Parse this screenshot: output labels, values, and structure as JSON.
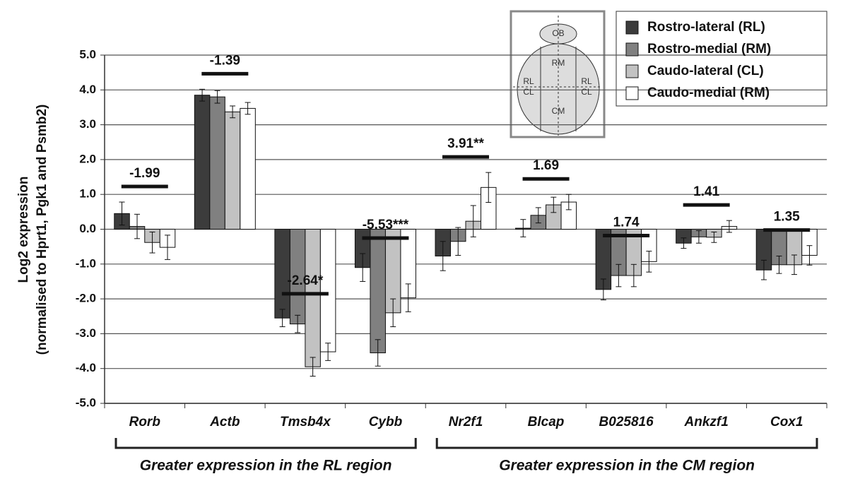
{
  "chart_data": {
    "type": "bar",
    "y_label": [
      "Log2 expression",
      "(normalised to Hprt1, Pgk1 and Psmb2)"
    ],
    "categories": [
      "Rorb",
      "Actb",
      "Tmsb4x",
      "Cybb",
      "Nr2f1",
      "Blcap",
      "B025816",
      "Ankzf1",
      "Cox1"
    ],
    "series": [
      {
        "name": "Rostro-lateral (RL)",
        "color": "#3c3c3c",
        "values": [
          0.45,
          3.85,
          -2.55,
          -1.1,
          -0.77,
          0.03,
          -1.73,
          -0.4,
          -1.17
        ],
        "errors": [
          0.33,
          0.17,
          0.25,
          0.4,
          0.42,
          0.25,
          0.3,
          0.15,
          0.28
        ]
      },
      {
        "name": "Rostro-medial (RM)",
        "color": "#808080",
        "values": [
          0.08,
          3.8,
          -2.72,
          -3.55,
          -0.35,
          0.4,
          -1.33,
          -0.22,
          -1.02
        ],
        "errors": [
          0.35,
          0.18,
          0.25,
          0.38,
          0.4,
          0.22,
          0.32,
          0.18,
          0.25
        ]
      },
      {
        "name": "Caudo-lateral (CL)",
        "color": "#c2c2c2",
        "values": [
          -0.38,
          3.37,
          -3.95,
          -2.4,
          0.23,
          0.7,
          -1.33,
          -0.23,
          -1.02
        ],
        "errors": [
          0.3,
          0.17,
          0.27,
          0.4,
          0.45,
          0.22,
          0.32,
          0.15,
          0.28
        ]
      },
      {
        "name": "Caudo-medial (RM)",
        "color": "#ffffff",
        "values": [
          -0.52,
          3.47,
          -3.52,
          -1.97,
          1.2,
          0.78,
          -0.93,
          0.08,
          -0.75
        ],
        "errors": [
          0.35,
          0.17,
          0.25,
          0.4,
          0.43,
          0.22,
          0.3,
          0.17,
          0.28
        ]
      }
    ],
    "annotations": [
      "-1.99",
      "-1.39",
      "-2.64*",
      "-5.53***",
      "3.91**",
      "1.69",
      "1.74",
      "1.41",
      "1.35"
    ],
    "groups": [
      {
        "label": "Greater expression in the RL region",
        "first": 0,
        "last": 3
      },
      {
        "label": "Greater expression in the CM region",
        "first": 4,
        "last": 8
      }
    ],
    "inset_labels": [
      "OB",
      "RM",
      "RL",
      "CL",
      "RL",
      "CL",
      "CM"
    ],
    "ylim": [
      -5,
      5
    ],
    "yticks": [
      {
        "value": 5,
        "label": "5.0"
      },
      {
        "value": 4,
        "label": "4.0"
      },
      {
        "value": 3,
        "label": "3.0"
      },
      {
        "value": 2,
        "label": "2.0"
      },
      {
        "value": 1,
        "label": "1.0"
      },
      {
        "value": 0,
        "label": "0.0"
      },
      {
        "value": -1,
        "label": "-1.0"
      },
      {
        "value": -2,
        "label": "-2.0"
      },
      {
        "value": -3,
        "label": "-3.0"
      },
      {
        "value": -4,
        "label": "-4.0"
      },
      {
        "value": -5,
        "label": "-5.0"
      }
    ],
    "grid": true
  }
}
